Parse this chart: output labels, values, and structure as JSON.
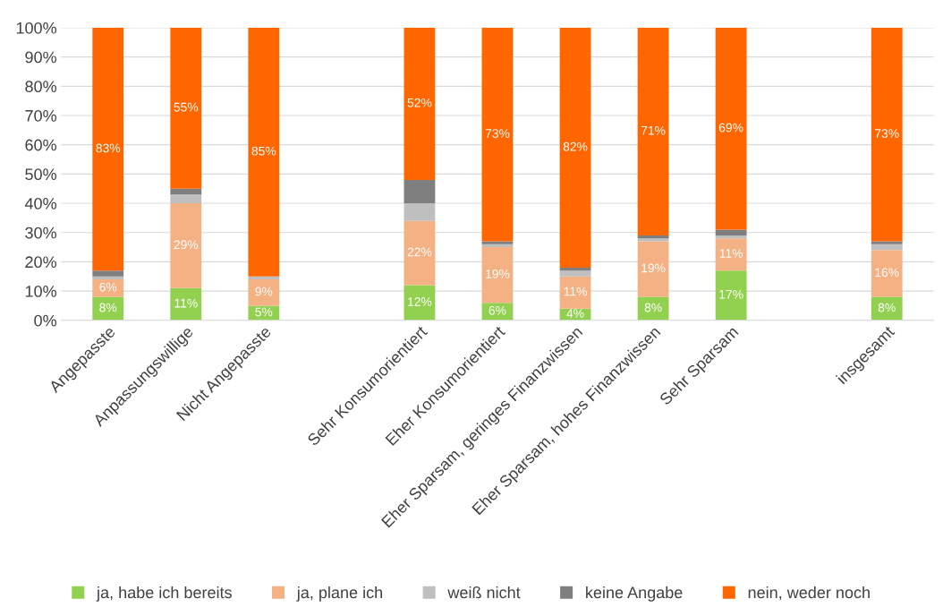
{
  "chart_data": {
    "type": "bar",
    "stacked": true,
    "categories": [
      "Angepasste",
      "Anpassungswillige",
      "Nicht Angepasste",
      null,
      "Sehr Konsumorientiert",
      "Eher Konsumorientiert",
      "Eher Sparsam, geringes Finanzwissen",
      "Eher Sparsam, hohes Finanzwissen",
      "Sehr Sparsam",
      null,
      "insgesamt"
    ],
    "series": [
      {
        "name": "ja, habe ich bereits",
        "color": "#92d050",
        "values": [
          8,
          11,
          5,
          null,
          12,
          6,
          4,
          8,
          17,
          null,
          8
        ],
        "value_labels": [
          "8%",
          "11%",
          "5%",
          null,
          "12%",
          "6%",
          "4%",
          "8%",
          "17%",
          null,
          "8%"
        ]
      },
      {
        "name": "ja, plane ich",
        "color": "#f4b183",
        "values": [
          6,
          29,
          9,
          null,
          22,
          19,
          11,
          19,
          11,
          null,
          16
        ],
        "value_labels": [
          "6%",
          "29%",
          "9%",
          null,
          "22%",
          "19%",
          "11%",
          "19%",
          "11%",
          null,
          "16%"
        ]
      },
      {
        "name": "weiß nicht",
        "color": "#bfbfbf",
        "values": [
          1,
          3,
          1,
          null,
          6,
          1,
          2,
          1,
          1,
          null,
          2
        ]
      },
      {
        "name": "keine Angabe",
        "color": "#7f7f7f",
        "values": [
          2,
          2,
          0,
          null,
          8,
          1,
          1,
          1,
          2,
          null,
          1
        ]
      },
      {
        "name": "nein, weder noch",
        "color": "#ff6600",
        "values": [
          83,
          55,
          85,
          null,
          52,
          73,
          82,
          71,
          69,
          null,
          73
        ],
        "value_labels": [
          "83%",
          "55%",
          "85%",
          null,
          "52%",
          "73%",
          "82%",
          "71%",
          "69%",
          null,
          "73%"
        ]
      }
    ],
    "ylim": [
      0,
      100
    ],
    "yticks": [
      {
        "value": 0,
        "label": "0%"
      },
      {
        "value": 10,
        "label": "10%"
      },
      {
        "value": 20,
        "label": "20%"
      },
      {
        "value": 30,
        "label": "30%"
      },
      {
        "value": 40,
        "label": "40%"
      },
      {
        "value": 50,
        "label": "50%"
      },
      {
        "value": 60,
        "label": "60%"
      },
      {
        "value": 70,
        "label": "70%"
      },
      {
        "value": 80,
        "label": "80%"
      },
      {
        "value": 90,
        "label": "90%"
      },
      {
        "value": 100,
        "label": "100%"
      }
    ],
    "grid": "y",
    "legend": "bottom"
  }
}
